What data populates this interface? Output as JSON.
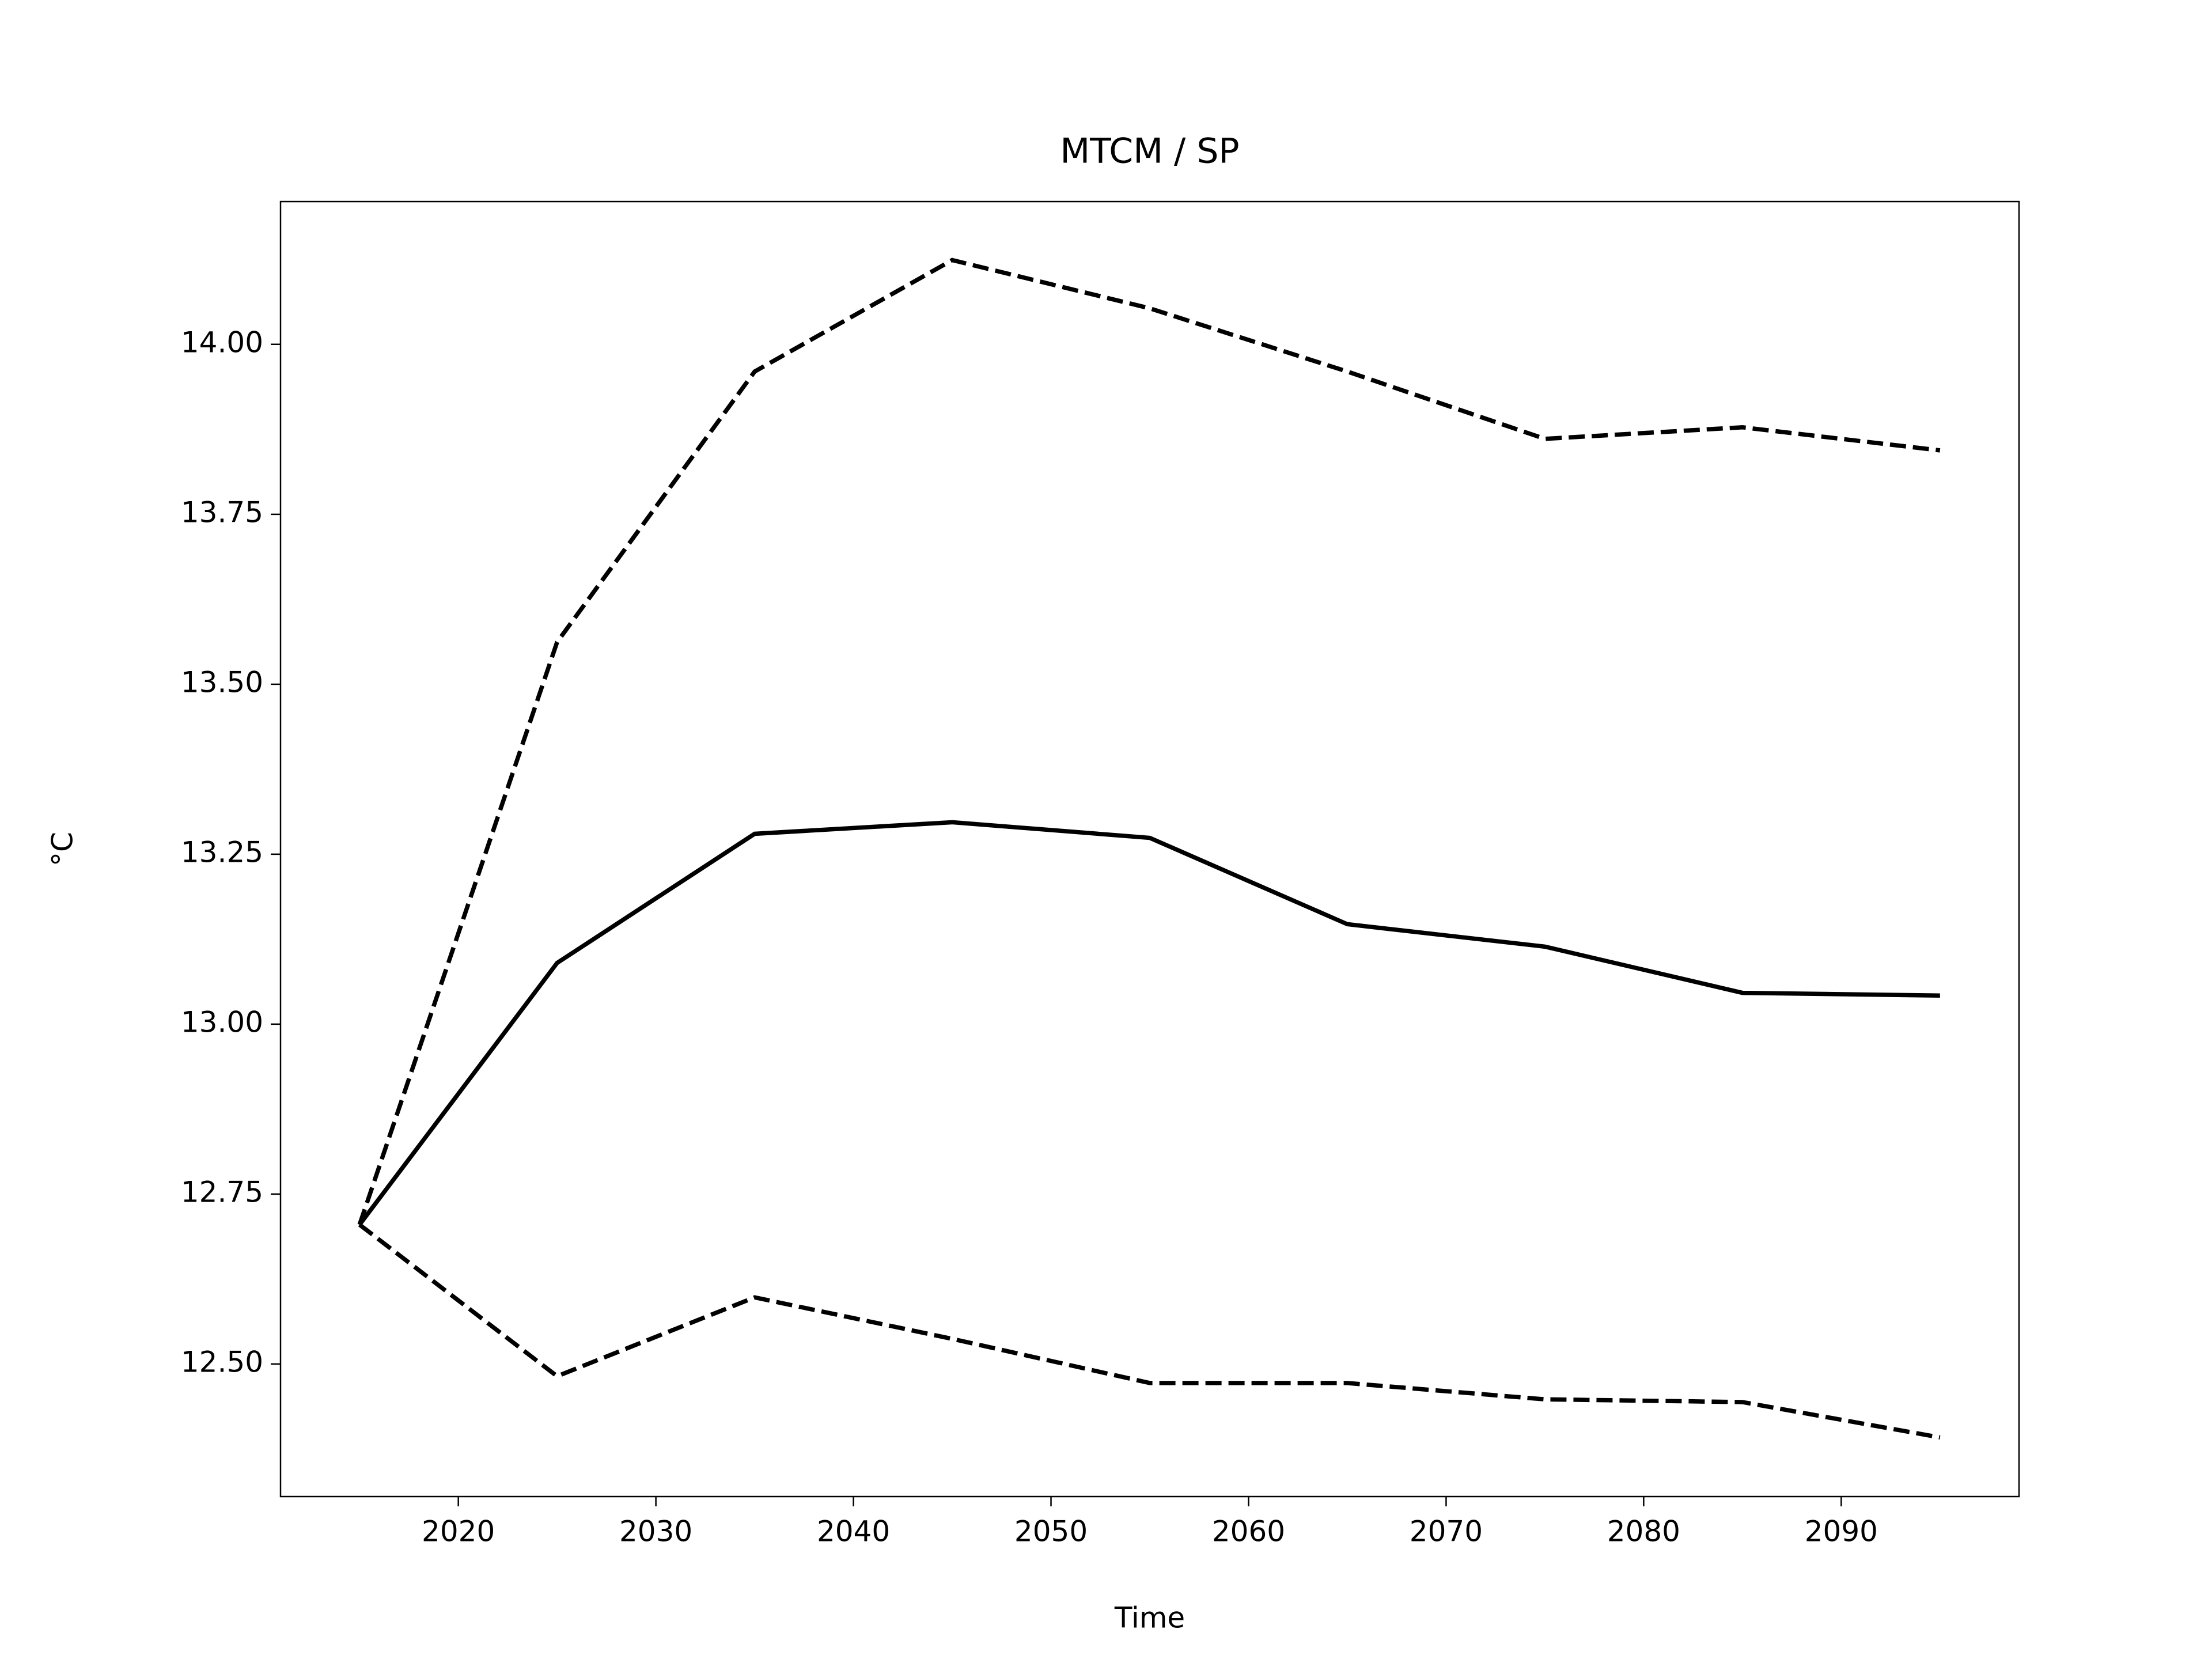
{
  "chart_data": {
    "type": "line",
    "title": "MTCM / SP",
    "xlabel": "Time",
    "ylabel": "°C",
    "x": [
      2015,
      2025,
      2035,
      2045,
      2055,
      2065,
      2075,
      2085,
      2095
    ],
    "series": [
      {
        "color": "#000000",
        "dashed": false,
        "values": [
          12.705,
          13.09,
          13.28,
          13.297,
          13.274,
          13.147,
          13.114,
          13.046,
          13.042
        ]
      },
      {
        "color": "#000000",
        "dashed": true,
        "values": [
          12.705,
          13.562,
          13.96,
          14.124,
          14.053,
          13.96,
          13.861,
          13.878,
          13.844
        ]
      },
      {
        "color": "#000000",
        "dashed": true,
        "values": [
          12.705,
          12.482,
          12.598,
          12.537,
          12.472,
          12.472,
          12.448,
          12.444,
          12.392
        ]
      }
    ],
    "xlim": [
      2011,
      2099
    ],
    "xticks": [
      2020,
      2030,
      2040,
      2050,
      2060,
      2070,
      2080,
      2090
    ],
    "ylim": [
      12.305,
      14.21
    ],
    "yticks": [
      {
        "value": 12.5,
        "label": "12.50"
      },
      {
        "value": 12.75,
        "label": "12.75"
      },
      {
        "value": 13,
        "label": "13.00"
      },
      {
        "value": 13.25,
        "label": "13.25"
      },
      {
        "value": 13.5,
        "label": "13.50"
      },
      {
        "value": 13.75,
        "label": "13.75"
      },
      {
        "value": 14,
        "label": "14.00"
      }
    ],
    "grid": false
  }
}
